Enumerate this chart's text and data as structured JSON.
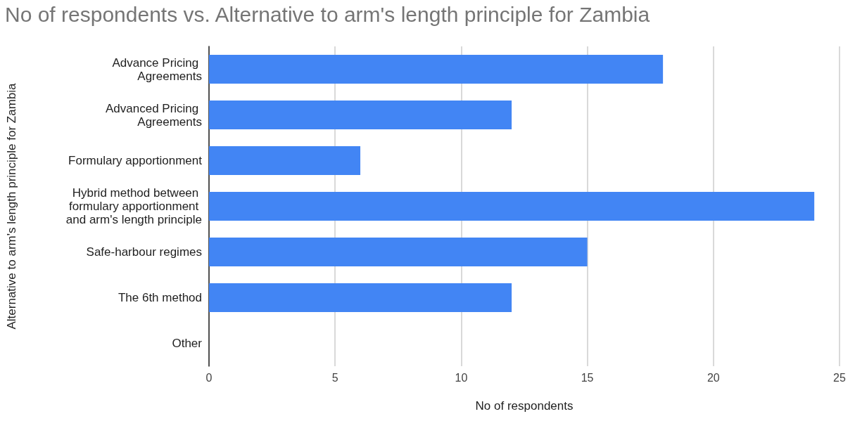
{
  "chart_data": {
    "type": "bar",
    "orientation": "horizontal",
    "title": "No of respondents vs. Alternative to arm's length principle for Zambia",
    "xlabel": "No of respondents",
    "ylabel": "Alternative to arm's length principle for Zambia",
    "categories": [
      "Advance Pricing Agreements",
      "Advanced Pricing Agreements",
      "Formulary apportionment",
      "Hybrid method between formulary apportionment and arm's length principle",
      "Safe-harbour regimes",
      "The 6th method",
      "Other"
    ],
    "values": [
      18,
      12,
      6,
      24,
      15,
      12,
      0
    ],
    "color": "#4285f4",
    "xlim": [
      0,
      25
    ],
    "xticks": [
      0,
      5,
      10,
      15,
      20,
      25
    ],
    "grid": "x"
  }
}
